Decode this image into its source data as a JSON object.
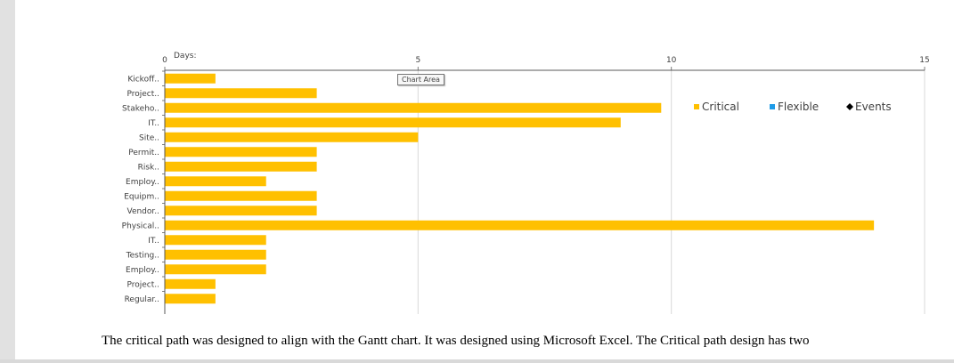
{
  "chart_data": {
    "type": "bar",
    "orientation": "horizontal",
    "axis_title": "Days:",
    "xlim": [
      0,
      15
    ],
    "xticks": [
      "0",
      "5",
      "10",
      "15"
    ],
    "categories": [
      "Kickoff..",
      "Project..",
      "Stakeho..",
      "IT..",
      "Site..",
      "Permit..",
      "Risk..",
      "Employ..",
      "Equipm..",
      "Vendor..",
      "Physical..",
      "IT..",
      "Testing..",
      "Employ..",
      "Project..",
      "Regular.."
    ],
    "series": [
      {
        "name": "Critical",
        "color": "#ffc000",
        "values": [
          1,
          3,
          9.8,
          9,
          5,
          3,
          3,
          2,
          3,
          3,
          14,
          2,
          2,
          2,
          1,
          1
        ]
      }
    ],
    "legend": {
      "position": "right",
      "items": [
        {
          "label": "Critical",
          "color": "#ffc000",
          "marker": "square"
        },
        {
          "label": "Flexible",
          "color": "#1e9be8",
          "marker": "square"
        },
        {
          "label": "Events",
          "color": "#000000",
          "marker": "diamond"
        }
      ]
    },
    "grid": true
  },
  "tooltip": "Chart Area",
  "body_text": "The critical path was designed to align with the Gantt chart. It was designed using Microsoft Excel. The Critical path design has two"
}
